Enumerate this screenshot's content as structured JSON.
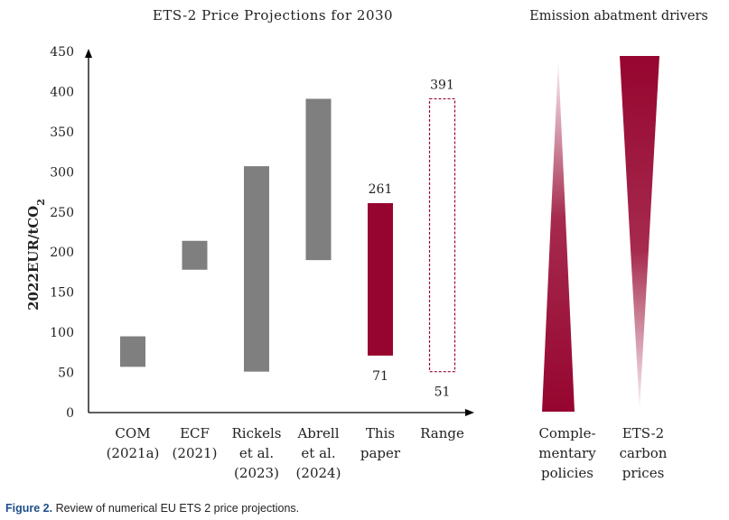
{
  "colors": {
    "gray": "#7f7f7f",
    "accent": "#96052f",
    "axis": "#000000"
  },
  "chart_data": [
    {
      "type": "bar",
      "subtype": "floating-range",
      "title": "ETS-2 Price Projections for 2030",
      "xlabel": "",
      "ylabel": "2022EUR/tCO2",
      "ylabel_parts": {
        "main": "2022EUR/tCO",
        "sub": "2"
      },
      "ylim": [
        0,
        450
      ],
      "yticks": [
        0,
        50,
        100,
        150,
        200,
        250,
        300,
        350,
        400,
        450
      ],
      "grid": false,
      "categories": [
        {
          "label": [
            "COM",
            "(2021a)"
          ],
          "low": 57,
          "high": 95,
          "style": "gray"
        },
        {
          "label": [
            "ECF",
            "(2021)"
          ],
          "low": 178,
          "high": 214,
          "style": "gray"
        },
        {
          "label": [
            "Rickels",
            "et al.",
            "(2023)"
          ],
          "low": 51,
          "high": 307,
          "style": "gray"
        },
        {
          "label": [
            "Abrell",
            "et al.",
            "(2024)"
          ],
          "low": 190,
          "high": 391,
          "style": "gray"
        },
        {
          "label": [
            "This",
            "paper"
          ],
          "low": 71,
          "high": 261,
          "style": "accent",
          "high_label": "261",
          "low_label": "71"
        },
        {
          "label": [
            "Range"
          ],
          "low": 51,
          "high": 391,
          "style": "dashed",
          "high_label": "391",
          "low_label": "51"
        }
      ]
    },
    {
      "type": "other",
      "title": "Emission abatment drivers",
      "items": [
        {
          "label": [
            "Comple-",
            "mentary",
            "policies"
          ],
          "direction": "widening-downward"
        },
        {
          "label": [
            "ETS-2",
            "carbon",
            "prices"
          ],
          "direction": "widening-upward"
        }
      ]
    }
  ],
  "caption": {
    "label": "Figure 2.",
    "text": " Review of numerical EU ETS 2 price projections."
  }
}
